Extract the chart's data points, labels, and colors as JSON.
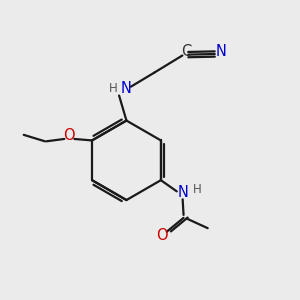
{
  "bg_color": "#ebebeb",
  "bond_color": "#1a1a1a",
  "N_color": "#0000cc",
  "O_color": "#cc0000",
  "lw": 1.6,
  "figsize": [
    3.0,
    3.0
  ],
  "dpi": 100,
  "xlim": [
    0,
    10
  ],
  "ylim": [
    0,
    10
  ]
}
